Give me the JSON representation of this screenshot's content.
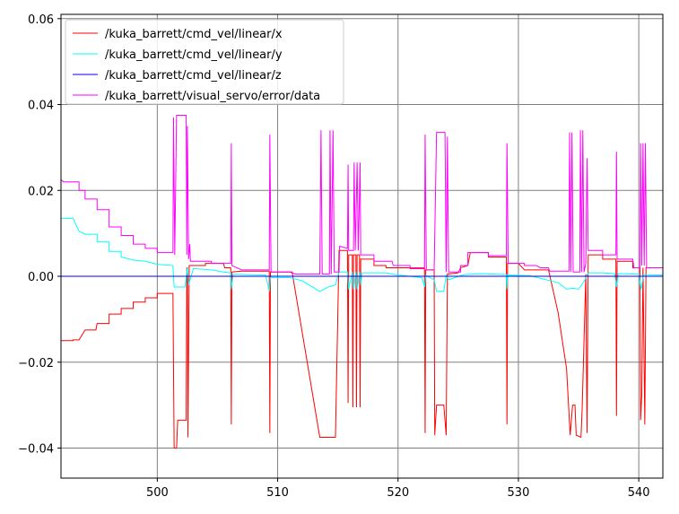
{
  "chart_data": {
    "type": "line",
    "title": "",
    "xlabel": "",
    "ylabel": "",
    "xlim": [
      492,
      542
    ],
    "ylim": [
      -0.047,
      0.061
    ],
    "xticks": [
      500,
      510,
      520,
      530,
      540
    ],
    "yticks": [
      -0.04,
      -0.02,
      0.0,
      0.02,
      0.04,
      0.06
    ],
    "xtick_labels": [
      "500",
      "510",
      "520",
      "530",
      "540"
    ],
    "ytick_labels": [
      "−0.04",
      "−0.02",
      "0.00",
      "0.02",
      "0.04",
      "0.06"
    ],
    "grid": true,
    "legend_position": "top-left",
    "series": [
      {
        "name": "/kuka_barrett/cmd_vel/linear/x",
        "color": "#ff0000",
        "points": [
          [
            492,
            -0.015
          ],
          [
            493,
            -0.015
          ],
          [
            493.0,
            -0.0148
          ],
          [
            493.5,
            -0.0148
          ],
          [
            494,
            -0.0125
          ],
          [
            494.9,
            -0.0125
          ],
          [
            495,
            -0.011
          ],
          [
            496,
            -0.011
          ],
          [
            496,
            -0.0088
          ],
          [
            497,
            -0.0088
          ],
          [
            497,
            -0.0075
          ],
          [
            498,
            -0.0075
          ],
          [
            498,
            -0.006
          ],
          [
            499,
            -0.006
          ],
          [
            499,
            -0.005
          ],
          [
            500,
            -0.005
          ],
          [
            500,
            -0.004
          ],
          [
            501.3,
            -0.004
          ],
          [
            501.4,
            -0.04
          ],
          [
            501.6,
            -0.04
          ],
          [
            501.7,
            -0.0335
          ],
          [
            502.3,
            -0.0335
          ],
          [
            502.4,
            -0.0335
          ],
          [
            502.45,
            0.002
          ],
          [
            502.5,
            0.002
          ],
          [
            502.55,
            -0.0375
          ],
          [
            502.65,
            0.0025
          ],
          [
            503,
            0.0025
          ],
          [
            504,
            0.0025
          ],
          [
            504,
            0.003
          ],
          [
            505.5,
            0.003
          ],
          [
            505.6,
            0.002
          ],
          [
            506.1,
            0.002
          ],
          [
            506.15,
            -0.0345
          ],
          [
            506.2,
            0.001
          ],
          [
            507,
            0.0012
          ],
          [
            509.3,
            0.0012
          ],
          [
            509.35,
            -0.0365
          ],
          [
            509.4,
            0.001
          ],
          [
            511.2,
            0.001
          ],
          [
            513.5,
            -0.0375
          ],
          [
            514.8,
            -0.0375
          ],
          [
            515.1,
            0.006
          ],
          [
            515.8,
            0.006
          ],
          [
            515.85,
            -0.0295
          ],
          [
            515.9,
            0.005
          ],
          [
            516.2,
            0.005
          ],
          [
            516.25,
            -0.0305
          ],
          [
            516.3,
            0.005
          ],
          [
            516.5,
            0.005
          ],
          [
            516.55,
            -0.0305
          ],
          [
            516.6,
            0.005
          ],
          [
            516.8,
            0.005
          ],
          [
            516.85,
            -0.0305
          ],
          [
            516.9,
            0.004
          ],
          [
            518,
            0.004
          ],
          [
            518,
            0.0025
          ],
          [
            519,
            0.0025
          ],
          [
            519,
            0.002
          ],
          [
            521,
            0.002
          ],
          [
            521,
            0.0018
          ],
          [
            522.2,
            0.0018
          ],
          [
            522.25,
            -0.0365
          ],
          [
            522.3,
            0.0015
          ],
          [
            522.8,
            0.0015
          ],
          [
            523,
            0.0015
          ],
          [
            523.05,
            -0.037
          ],
          [
            523.2,
            -0.03
          ],
          [
            523.8,
            -0.03
          ],
          [
            524.0,
            -0.037
          ],
          [
            524.1,
            0.0005
          ],
          [
            525,
            0.0008
          ],
          [
            525.2,
            0.002
          ],
          [
            525.8,
            0.0025
          ],
          [
            526,
            0.0055
          ],
          [
            527.5,
            0.0055
          ],
          [
            527.5,
            0.0045
          ],
          [
            529,
            0.0045
          ],
          [
            529.05,
            -0.0345
          ],
          [
            529.1,
            0.003
          ],
          [
            530,
            0.003
          ],
          [
            530.5,
            0.0015
          ],
          [
            532.5,
            0.0015
          ],
          [
            533.3,
            -0.0085
          ],
          [
            534.0,
            -0.0215
          ],
          [
            534.3,
            -0.037
          ],
          [
            534.5,
            -0.03
          ],
          [
            534.7,
            -0.03
          ],
          [
            534.8,
            -0.037
          ],
          [
            535.2,
            -0.0375
          ],
          [
            535.3,
            -0.0305
          ],
          [
            535.6,
            0.0005
          ],
          [
            535.7,
            -0.0365
          ],
          [
            535.8,
            0.005
          ],
          [
            537,
            0.005
          ],
          [
            537,
            0.004
          ],
          [
            538.1,
            0.004
          ],
          [
            538.15,
            -0.0325
          ],
          [
            538.2,
            0.0035
          ],
          [
            539.5,
            0.0035
          ],
          [
            539.5,
            0.002
          ],
          [
            540.1,
            0.002
          ],
          [
            540.15,
            -0.0335
          ],
          [
            540.25,
            -0.0275
          ],
          [
            540.35,
            0.002
          ],
          [
            540.5,
            -0.0345
          ],
          [
            540.6,
            0.002
          ],
          [
            542,
            0.002
          ]
        ]
      },
      {
        "name": "/kuka_barrett/cmd_vel/linear/y",
        "color": "#00ffff",
        "points": [
          [
            492,
            0.0135
          ],
          [
            493,
            0.0135
          ],
          [
            493.5,
            0.0105
          ],
          [
            494,
            0.0098
          ],
          [
            495,
            0.0098
          ],
          [
            495,
            0.008
          ],
          [
            496,
            0.008
          ],
          [
            496,
            0.0058
          ],
          [
            497,
            0.0058
          ],
          [
            497,
            0.0045
          ],
          [
            498,
            0.0038
          ],
          [
            499,
            0.0035
          ],
          [
            500,
            0.0028
          ],
          [
            501.3,
            0.0025
          ],
          [
            501.4,
            -0.0025
          ],
          [
            502.3,
            -0.0025
          ],
          [
            502.5,
            0.002
          ],
          [
            502.6,
            -0.002
          ],
          [
            503,
            0.0018
          ],
          [
            504.5,
            0.0015
          ],
          [
            505.5,
            0.001
          ],
          [
            506.1,
            0.0008
          ],
          [
            506.15,
            -0.003
          ],
          [
            506.3,
            0.0005
          ],
          [
            509,
            0.0003
          ],
          [
            509.3,
            -0.0035
          ],
          [
            509.4,
            -0.0003
          ],
          [
            511,
            -0.0003
          ],
          [
            512,
            -0.001
          ],
          [
            513.5,
            -0.0035
          ],
          [
            514.2,
            -0.0025
          ],
          [
            514.8,
            -0.002
          ],
          [
            515.1,
            0.001
          ],
          [
            515.8,
            0.001
          ],
          [
            515.9,
            -0.003
          ],
          [
            516.2,
            0.001
          ],
          [
            516.3,
            -0.003
          ],
          [
            516.5,
            0.001
          ],
          [
            516.6,
            -0.003
          ],
          [
            516.8,
            0.001
          ],
          [
            516.9,
            -0.002
          ],
          [
            517,
            0.0008
          ],
          [
            519,
            0.0008
          ],
          [
            520,
            0.0003
          ],
          [
            522,
            -0.0003
          ],
          [
            522.2,
            -0.0025
          ],
          [
            522.3,
            0.0002
          ],
          [
            523,
            -0.0008
          ],
          [
            523.2,
            -0.0035
          ],
          [
            523.8,
            -0.0035
          ],
          [
            524,
            0.0002
          ],
          [
            524.2,
            -0.0008
          ],
          [
            525.5,
            0.0004
          ],
          [
            527,
            0.0006
          ],
          [
            529,
            0.0004
          ],
          [
            529.05,
            -0.003
          ],
          [
            529.1,
            0.0003
          ],
          [
            531,
            0.0001
          ],
          [
            533.3,
            -0.0015
          ],
          [
            534,
            -0.003
          ],
          [
            534.5,
            -0.0028
          ],
          [
            535,
            -0.003
          ],
          [
            535.5,
            -0.001
          ],
          [
            535.8,
            0.0008
          ],
          [
            537,
            0.0008
          ],
          [
            538,
            0.0006
          ],
          [
            538.15,
            -0.0025
          ],
          [
            538.3,
            0.0006
          ],
          [
            540,
            0.0005
          ],
          [
            540.2,
            -0.003
          ],
          [
            540.4,
            0.0004
          ],
          [
            542,
            0.0003
          ]
        ]
      },
      {
        "name": "/kuka_barrett/cmd_vel/linear/z",
        "color": "#0000ff",
        "points": [
          [
            492,
            0.0
          ],
          [
            542,
            0.0
          ]
        ]
      },
      {
        "name": "/kuka_barrett/visual_servo/error/data",
        "color": "#ff00ff",
        "points": [
          [
            492,
            0.0225
          ],
          [
            492.2,
            0.022
          ],
          [
            493.5,
            0.022
          ],
          [
            493.5,
            0.02
          ],
          [
            494,
            0.02
          ],
          [
            494,
            0.018
          ],
          [
            495,
            0.018
          ],
          [
            495,
            0.0155
          ],
          [
            496,
            0.0155
          ],
          [
            496,
            0.0115
          ],
          [
            497,
            0.0115
          ],
          [
            497,
            0.0095
          ],
          [
            498,
            0.0095
          ],
          [
            498,
            0.0075
          ],
          [
            499,
            0.0075
          ],
          [
            499,
            0.0065
          ],
          [
            500,
            0.0065
          ],
          [
            500,
            0.0055
          ],
          [
            501.3,
            0.0055
          ],
          [
            501.35,
            0.037
          ],
          [
            501.45,
            0.005
          ],
          [
            501.6,
            0.0375
          ],
          [
            502.4,
            0.0375
          ],
          [
            502.45,
            0.005
          ],
          [
            502.5,
            0.035
          ],
          [
            502.6,
            0.004
          ],
          [
            502.7,
            0.0075
          ],
          [
            502.75,
            0.0035
          ],
          [
            504.5,
            0.0035
          ],
          [
            504.5,
            0.003
          ],
          [
            506.1,
            0.003
          ],
          [
            506.15,
            0.031
          ],
          [
            506.2,
            0.0025
          ],
          [
            507,
            0.0015
          ],
          [
            509.3,
            0.0015
          ],
          [
            509.35,
            0.033
          ],
          [
            509.45,
            0.001
          ],
          [
            511,
            0.001
          ],
          [
            511.5,
            0.0005
          ],
          [
            513.5,
            0.0005
          ],
          [
            513.6,
            0.034
          ],
          [
            513.7,
            0.0005
          ],
          [
            514.3,
            0.0005
          ],
          [
            514.35,
            0.034
          ],
          [
            514.45,
            0.0005
          ],
          [
            514.6,
            0.034
          ],
          [
            514.7,
            0.001
          ],
          [
            515.1,
            0.001
          ],
          [
            515.15,
            0.007
          ],
          [
            515.8,
            0.0065
          ],
          [
            515.85,
            0.026
          ],
          [
            515.9,
            0.006
          ],
          [
            516.3,
            0.006
          ],
          [
            516.35,
            0.0265
          ],
          [
            516.45,
            0.006
          ],
          [
            516.6,
            0.0265
          ],
          [
            516.7,
            0.006
          ],
          [
            516.85,
            0.0265
          ],
          [
            516.9,
            0.005
          ],
          [
            518,
            0.005
          ],
          [
            518,
            0.0035
          ],
          [
            519.5,
            0.0035
          ],
          [
            519.6,
            0.0025
          ],
          [
            521,
            0.0025
          ],
          [
            521,
            0.002
          ],
          [
            522.2,
            0.002
          ],
          [
            522.25,
            0.033
          ],
          [
            522.35,
            0.0015
          ],
          [
            523,
            0.0015
          ],
          [
            523.2,
            0.0335
          ],
          [
            523.9,
            0.0335
          ],
          [
            524,
            0.001
          ],
          [
            524.1,
            0.0325
          ],
          [
            524.2,
            0.001
          ],
          [
            525.2,
            0.001
          ],
          [
            525.2,
            0.0025
          ],
          [
            525.8,
            0.0025
          ],
          [
            525.8,
            0.0055
          ],
          [
            527.5,
            0.0055
          ],
          [
            527.5,
            0.0048
          ],
          [
            529,
            0.0048
          ],
          [
            529.05,
            0.031
          ],
          [
            529.15,
            0.003
          ],
          [
            530.5,
            0.003
          ],
          [
            530.5,
            0.0025
          ],
          [
            531.5,
            0.0025
          ],
          [
            531.8,
            0.002
          ],
          [
            532.5,
            0.002
          ],
          [
            532.6,
            0.0012
          ],
          [
            534.2,
            0.0012
          ],
          [
            534.25,
            0.0335
          ],
          [
            534.35,
            0.001
          ],
          [
            534.45,
            0.0335
          ],
          [
            534.55,
            0.001
          ],
          [
            535.1,
            0.001
          ],
          [
            535.15,
            0.034
          ],
          [
            535.25,
            0.001
          ],
          [
            535.35,
            0.034
          ],
          [
            535.45,
            0.001
          ],
          [
            535.6,
            0.003
          ],
          [
            535.7,
            0.0275
          ],
          [
            535.8,
            0.006
          ],
          [
            537,
            0.006
          ],
          [
            537,
            0.005
          ],
          [
            538.1,
            0.005
          ],
          [
            538.15,
            0.029
          ],
          [
            538.2,
            0.004
          ],
          [
            539.5,
            0.004
          ],
          [
            539.6,
            0.002
          ],
          [
            540.1,
            0.002
          ],
          [
            540.15,
            0.031
          ],
          [
            540.25,
            0.0025
          ],
          [
            540.35,
            0.031
          ],
          [
            540.45,
            0.0025
          ],
          [
            540.55,
            0.031
          ],
          [
            540.65,
            0.002
          ],
          [
            542,
            0.002
          ]
        ]
      }
    ]
  }
}
